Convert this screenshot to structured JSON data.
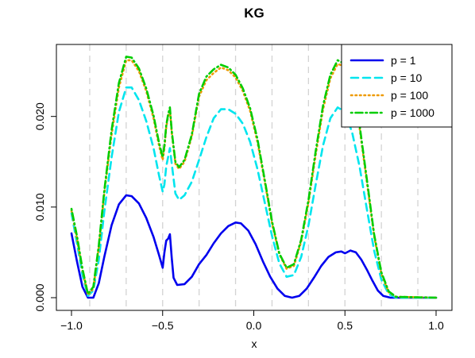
{
  "chart_data": {
    "type": "line",
    "title": "KG",
    "xlabel": "x",
    "ylabel": "",
    "xlim": [
      -1.0,
      1.0
    ],
    "ylim": [
      0.0,
      0.026
    ],
    "x_ticks": [
      -1.0,
      -0.5,
      0.0,
      0.5,
      1.0
    ],
    "x_tick_labels": [
      "−1.0",
      "−0.5",
      "0.0",
      "0.5",
      "1.0"
    ],
    "y_ticks": [
      0.0,
      0.01,
      0.02
    ],
    "y_tick_labels": [
      "0.000",
      "0.010",
      "0.020"
    ],
    "grid": "vertical dashed lines at x = −0.9, −0.7, −0.5, −0.3, −0.1, 0.1, 0.3, 0.5, 0.7, 0.9",
    "grid_lines_x": [
      -0.9,
      -0.7,
      -0.5,
      -0.3,
      -0.1,
      0.1,
      0.3,
      0.5,
      0.7,
      0.9
    ],
    "legend_position": "top-right",
    "series": [
      {
        "name": "p = 1",
        "color": "#0000ee",
        "dash": "solid",
        "points": [
          [
            -1.0,
            0.0071
          ],
          [
            -0.97,
            0.004
          ],
          [
            -0.94,
            0.0012
          ],
          [
            -0.91,
            0.0
          ],
          [
            -0.88,
            0.0
          ],
          [
            -0.85,
            0.0016
          ],
          [
            -0.82,
            0.0045
          ],
          [
            -0.78,
            0.008
          ],
          [
            -0.74,
            0.0103
          ],
          [
            -0.7,
            0.0113
          ],
          [
            -0.67,
            0.0112
          ],
          [
            -0.63,
            0.0104
          ],
          [
            -0.59,
            0.0088
          ],
          [
            -0.55,
            0.0067
          ],
          [
            -0.52,
            0.0047
          ],
          [
            -0.5,
            0.0033
          ],
          [
            -0.49,
            0.005
          ],
          [
            -0.48,
            0.0063
          ],
          [
            -0.47,
            0.0065
          ],
          [
            -0.46,
            0.007
          ],
          [
            -0.45,
            0.0044
          ],
          [
            -0.44,
            0.0022
          ],
          [
            -0.42,
            0.0014
          ],
          [
            -0.38,
            0.0015
          ],
          [
            -0.34,
            0.0023
          ],
          [
            -0.3,
            0.0037
          ],
          [
            -0.26,
            0.0047
          ],
          [
            -0.22,
            0.006
          ],
          [
            -0.18,
            0.0071
          ],
          [
            -0.14,
            0.0079
          ],
          [
            -0.1,
            0.0083
          ],
          [
            -0.07,
            0.0082
          ],
          [
            -0.03,
            0.0074
          ],
          [
            0.01,
            0.0059
          ],
          [
            0.05,
            0.004
          ],
          [
            0.09,
            0.0023
          ],
          [
            0.13,
            0.001
          ],
          [
            0.17,
            0.0002
          ],
          [
            0.21,
            0.0
          ],
          [
            0.25,
            0.0002
          ],
          [
            0.29,
            0.001
          ],
          [
            0.33,
            0.0022
          ],
          [
            0.37,
            0.0035
          ],
          [
            0.41,
            0.0045
          ],
          [
            0.45,
            0.005
          ],
          [
            0.48,
            0.0051
          ],
          [
            0.5,
            0.0049
          ],
          [
            0.53,
            0.0052
          ],
          [
            0.56,
            0.005
          ],
          [
            0.59,
            0.0042
          ],
          [
            0.62,
            0.0031
          ],
          [
            0.65,
            0.0019
          ],
          [
            0.68,
            0.0008
          ],
          [
            0.71,
            0.0002
          ],
          [
            0.75,
            0.0
          ],
          [
            1.0,
            0.0
          ]
        ]
      },
      {
        "name": "p = 10",
        "color": "#00e5ee",
        "dash": "dashed",
        "points": [
          [
            -1.0,
            0.0093
          ],
          [
            -0.97,
            0.006
          ],
          [
            -0.94,
            0.0025
          ],
          [
            -0.91,
            0.0002
          ],
          [
            -0.88,
            0.0008
          ],
          [
            -0.85,
            0.0042
          ],
          [
            -0.82,
            0.0095
          ],
          [
            -0.78,
            0.0155
          ],
          [
            -0.74,
            0.0205
          ],
          [
            -0.7,
            0.0232
          ],
          [
            -0.67,
            0.0232
          ],
          [
            -0.63,
            0.0218
          ],
          [
            -0.59,
            0.0195
          ],
          [
            -0.55,
            0.0165
          ],
          [
            -0.52,
            0.0135
          ],
          [
            -0.5,
            0.0117
          ],
          [
            -0.49,
            0.0125
          ],
          [
            -0.48,
            0.0145
          ],
          [
            -0.47,
            0.0155
          ],
          [
            -0.46,
            0.0165
          ],
          [
            -0.45,
            0.0148
          ],
          [
            -0.43,
            0.0115
          ],
          [
            -0.41,
            0.0108
          ],
          [
            -0.38,
            0.0113
          ],
          [
            -0.34,
            0.0128
          ],
          [
            -0.3,
            0.0152
          ],
          [
            -0.26,
            0.0177
          ],
          [
            -0.22,
            0.0198
          ],
          [
            -0.18,
            0.0208
          ],
          [
            -0.14,
            0.0208
          ],
          [
            -0.1,
            0.0203
          ],
          [
            -0.06,
            0.0192
          ],
          [
            -0.02,
            0.0172
          ],
          [
            0.02,
            0.0142
          ],
          [
            0.06,
            0.0105
          ],
          [
            0.1,
            0.0068
          ],
          [
            0.14,
            0.0038
          ],
          [
            0.18,
            0.0023
          ],
          [
            0.22,
            0.0025
          ],
          [
            0.26,
            0.0045
          ],
          [
            0.3,
            0.008
          ],
          [
            0.34,
            0.0125
          ],
          [
            0.38,
            0.0168
          ],
          [
            0.42,
            0.0198
          ],
          [
            0.46,
            0.021
          ],
          [
            0.5,
            0.0205
          ],
          [
            0.54,
            0.0182
          ],
          [
            0.58,
            0.0145
          ],
          [
            0.62,
            0.0098
          ],
          [
            0.66,
            0.0052
          ],
          [
            0.7,
            0.002
          ],
          [
            0.74,
            0.0004
          ],
          [
            0.78,
            0.0
          ],
          [
            1.0,
            0.0
          ]
        ]
      },
      {
        "name": "p = 100",
        "color": "#ee9a00",
        "dash": "dotted",
        "points": [
          [
            -1.0,
            0.0096
          ],
          [
            -0.97,
            0.0065
          ],
          [
            -0.94,
            0.003
          ],
          [
            -0.91,
            0.0003
          ],
          [
            -0.88,
            0.001
          ],
          [
            -0.85,
            0.0055
          ],
          [
            -0.82,
            0.0115
          ],
          [
            -0.78,
            0.018
          ],
          [
            -0.74,
            0.0232
          ],
          [
            -0.7,
            0.0262
          ],
          [
            -0.67,
            0.0262
          ],
          [
            -0.63,
            0.025
          ],
          [
            -0.59,
            0.0228
          ],
          [
            -0.55,
            0.0198
          ],
          [
            -0.52,
            0.0168
          ],
          [
            -0.5,
            0.0152
          ],
          [
            -0.49,
            0.0165
          ],
          [
            -0.48,
            0.0188
          ],
          [
            -0.47,
            0.02
          ],
          [
            -0.46,
            0.0208
          ],
          [
            -0.45,
            0.0182
          ],
          [
            -0.43,
            0.0148
          ],
          [
            -0.41,
            0.0142
          ],
          [
            -0.38,
            0.015
          ],
          [
            -0.34,
            0.0178
          ],
          [
            -0.3,
            0.0222
          ],
          [
            -0.26,
            0.024
          ],
          [
            -0.22,
            0.0248
          ],
          [
            -0.18,
            0.0254
          ],
          [
            -0.14,
            0.0251
          ],
          [
            -0.1,
            0.0243
          ],
          [
            -0.06,
            0.0228
          ],
          [
            -0.02,
            0.0206
          ],
          [
            0.02,
            0.0172
          ],
          [
            0.06,
            0.0128
          ],
          [
            0.1,
            0.0082
          ],
          [
            0.14,
            0.0048
          ],
          [
            0.18,
            0.0032
          ],
          [
            0.22,
            0.0035
          ],
          [
            0.26,
            0.0062
          ],
          [
            0.3,
            0.0105
          ],
          [
            0.34,
            0.0158
          ],
          [
            0.38,
            0.0208
          ],
          [
            0.42,
            0.0242
          ],
          [
            0.46,
            0.0258
          ],
          [
            0.5,
            0.0255
          ],
          [
            0.54,
            0.0232
          ],
          [
            0.58,
            0.0188
          ],
          [
            0.62,
            0.0128
          ],
          [
            0.66,
            0.0068
          ],
          [
            0.7,
            0.0026
          ],
          [
            0.74,
            0.0006
          ],
          [
            0.78,
            0.0001
          ],
          [
            1.0,
            0.0
          ]
        ]
      },
      {
        "name": "p = 1000",
        "color": "#00cd00",
        "dash": "dotdash",
        "points": [
          [
            -1.0,
            0.0098
          ],
          [
            -0.97,
            0.0068
          ],
          [
            -0.94,
            0.0032
          ],
          [
            -0.91,
            0.0004
          ],
          [
            -0.88,
            0.0012
          ],
          [
            -0.85,
            0.0058
          ],
          [
            -0.82,
            0.0118
          ],
          [
            -0.78,
            0.0185
          ],
          [
            -0.74,
            0.0237
          ],
          [
            -0.7,
            0.0266
          ],
          [
            -0.67,
            0.0265
          ],
          [
            -0.63,
            0.0253
          ],
          [
            -0.59,
            0.0231
          ],
          [
            -0.55,
            0.0201
          ],
          [
            -0.52,
            0.0171
          ],
          [
            -0.5,
            0.0155
          ],
          [
            -0.49,
            0.0168
          ],
          [
            -0.48,
            0.019
          ],
          [
            -0.47,
            0.0202
          ],
          [
            -0.46,
            0.021
          ],
          [
            -0.45,
            0.0184
          ],
          [
            -0.43,
            0.015
          ],
          [
            -0.41,
            0.0144
          ],
          [
            -0.38,
            0.0152
          ],
          [
            -0.34,
            0.018
          ],
          [
            -0.3,
            0.0225
          ],
          [
            -0.26,
            0.0244
          ],
          [
            -0.22,
            0.0252
          ],
          [
            -0.18,
            0.0257
          ],
          [
            -0.14,
            0.0254
          ],
          [
            -0.1,
            0.0246
          ],
          [
            -0.06,
            0.0231
          ],
          [
            -0.02,
            0.0209
          ],
          [
            0.02,
            0.0175
          ],
          [
            0.06,
            0.013
          ],
          [
            0.1,
            0.0084
          ],
          [
            0.14,
            0.0049
          ],
          [
            0.18,
            0.0033
          ],
          [
            0.22,
            0.0037
          ],
          [
            0.26,
            0.0064
          ],
          [
            0.3,
            0.0108
          ],
          [
            0.34,
            0.0162
          ],
          [
            0.38,
            0.0212
          ],
          [
            0.42,
            0.0246
          ],
          [
            0.46,
            0.0262
          ],
          [
            0.5,
            0.0258
          ],
          [
            0.54,
            0.0235
          ],
          [
            0.58,
            0.0191
          ],
          [
            0.62,
            0.0131
          ],
          [
            0.66,
            0.007
          ],
          [
            0.7,
            0.0028
          ],
          [
            0.74,
            0.0007
          ],
          [
            0.78,
            0.0001
          ],
          [
            1.0,
            0.0
          ]
        ]
      }
    ]
  }
}
